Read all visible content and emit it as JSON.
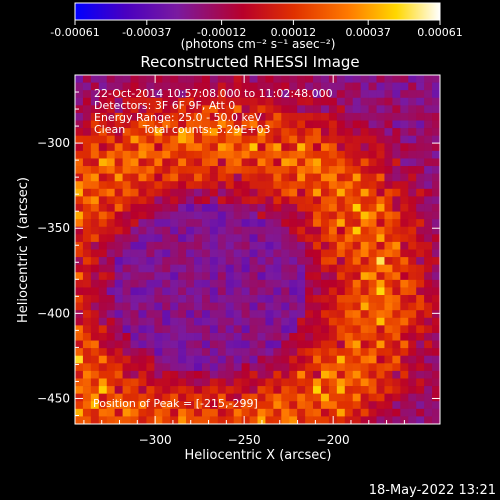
{
  "chart_data": {
    "type": "heatmap",
    "title": "Reconstructed RHESSI Image",
    "xlabel": "Heliocentric X (arcsec)",
    "ylabel": "Heliocentric Y (arcsec)",
    "xlim": [
      -345,
      -140
    ],
    "ylim": [
      -465,
      -260
    ],
    "x_ticks": [
      -300,
      -250,
      -200
    ],
    "y_ticks": [
      -300,
      -350,
      -400,
      -450
    ],
    "colorbar": {
      "ticks": [
        -0.00061,
        -0.00037,
        -0.00012,
        0.00012,
        0.00037,
        0.00061
      ],
      "tick_labels": [
        "-0.00061",
        "-0.00037",
        "-0.00012",
        "0.00012",
        "0.00037",
        "0.00061"
      ],
      "range": [
        -0.00061,
        0.00061
      ],
      "unit_label": "(photons cm⁻² s⁻¹ asec⁻²)",
      "colors": [
        "#0000ff",
        "#4a00c0",
        "#7a1aa0",
        "#b8002a",
        "#e03000",
        "#ff7a00",
        "#ffd700",
        "#ffffff"
      ]
    },
    "peak_position": [
      -215,
      -299
    ]
  },
  "annotations": {
    "time_range": "22-Oct-2014 10:57:08.000 to 11:02:48.000",
    "detectors": "Detectors: 3F 6F 9F, Att 0",
    "energy_range": "Energy Range: 25.0 - 50.0 keV",
    "clean_counts": "Clean     Total counts: 3.29E+03",
    "peak": "Position of Peak = [-215,-299]"
  },
  "timestamp": "18-May-2022 13:21"
}
